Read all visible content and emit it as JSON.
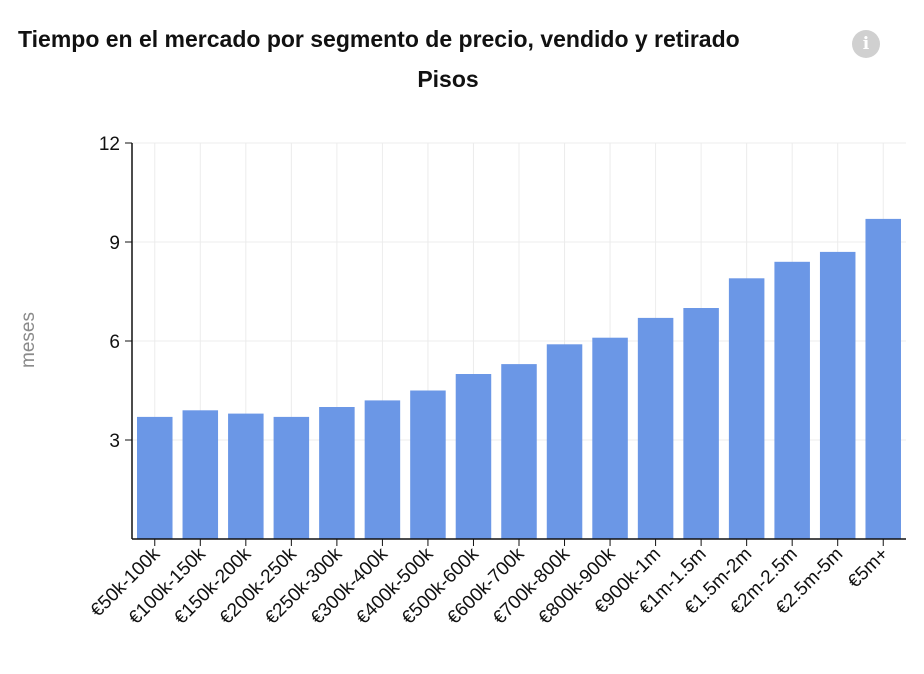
{
  "header": {
    "title": "Tiempo en el mercado por segmento de precio, vendido y retirado",
    "subtitle": "Pisos",
    "info_icon": "info-icon",
    "info_glyph": "i"
  },
  "colors": {
    "bar": "#6b97e6",
    "grid": "#ececec",
    "axis": "#111111",
    "ylabel": "#8a8a8a"
  },
  "chart_data": {
    "type": "bar",
    "title": "Tiempo en el mercado por segmento de precio, vendido y retirado",
    "subtitle": "Pisos",
    "xlabel": "",
    "ylabel": "meses",
    "ylim": [
      0,
      12
    ],
    "yticks": [
      3,
      6,
      9,
      12
    ],
    "grid": true,
    "categories": [
      "€50k-100k",
      "€100k-150k",
      "€150k-200k",
      "€200k-250k",
      "€250k-300k",
      "€300k-400k",
      "€400k-500k",
      "€500k-600k",
      "€600k-700k",
      "€700k-800k",
      "€800k-900k",
      "€900k-1m",
      "€1m-1.5m",
      "€1.5m-2m",
      "€2m-2.5m",
      "€2.5m-5m",
      "€5m+"
    ],
    "values": [
      3.7,
      3.9,
      3.8,
      3.7,
      4.0,
      4.2,
      4.5,
      5.0,
      5.3,
      5.9,
      6.1,
      6.7,
      7.0,
      7.9,
      8.4,
      8.7,
      9.7
    ]
  }
}
